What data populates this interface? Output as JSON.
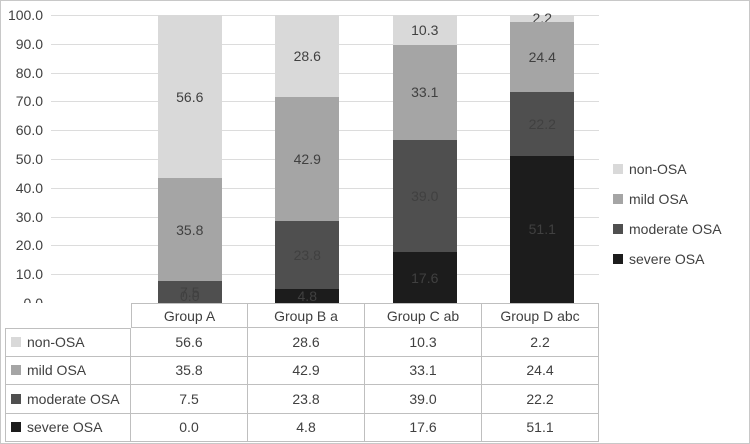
{
  "chart_data": {
    "type": "bar",
    "stacked": true,
    "categories": [
      "Group A",
      "Group B a",
      "Group C ab",
      "Group D abc"
    ],
    "series": [
      {
        "name": "non-OSA",
        "color": "#d9d9d9",
        "values": [
          56.6,
          28.6,
          10.3,
          2.2
        ]
      },
      {
        "name": "mild OSA",
        "color": "#a5a5a5",
        "values": [
          35.8,
          42.9,
          33.1,
          24.4
        ]
      },
      {
        "name": "moderate OSA",
        "color": "#4f4f4f",
        "values": [
          7.5,
          23.8,
          39.0,
          22.2
        ]
      },
      {
        "name": "severe OSA",
        "color": "#1c1c1c",
        "values": [
          0.0,
          4.8,
          17.6,
          51.1
        ]
      }
    ],
    "ylim": [
      0,
      100
    ],
    "ytick_step": 10,
    "value_decimals": 1,
    "grid": true,
    "legend_position": "right",
    "label_color": "#404040",
    "title": "",
    "xlabel": "",
    "ylabel": ""
  }
}
